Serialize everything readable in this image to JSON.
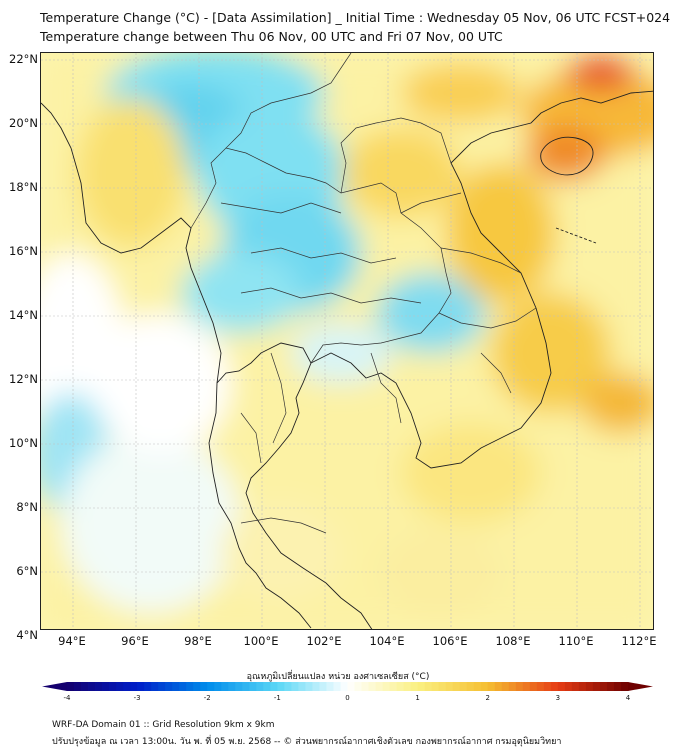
{
  "header": {
    "title_line1": "Temperature Change (°C) - [Data Assimilation] _ Initial Time : Wednesday 05 Nov, 06 UTC FCST+024",
    "title_line2": "Temperature change between Thu 06 Nov, 00 UTC and Fri 07 Nov, 00 UTC"
  },
  "map": {
    "lat_labels": [
      "22°N",
      "20°N",
      "18°N",
      "16°N",
      "14°N",
      "12°N",
      "10°N",
      "8°N",
      "6°N",
      "4°N"
    ],
    "lon_labels": [
      "94°E",
      "96°E",
      "98°E",
      "100°E",
      "102°E",
      "104°E",
      "106°E",
      "108°E",
      "110°E",
      "112°E"
    ],
    "lat_range": [
      4,
      22
    ],
    "lon_range": [
      93,
      112.4
    ],
    "field_description": "temperature change shading",
    "colors": {
      "cool": "#7fe0f2",
      "cool_strong": "#48c8ea",
      "neutral": "#ffffff",
      "warm_light": "#fbf08a",
      "warm": "#f7c840",
      "warm_strong": "#e8552a",
      "coast": "#222222",
      "border": "#333333",
      "grid": "#bfbfbf"
    }
  },
  "colorbar": {
    "title": "อุณหภูมิเปลี่ยนแปลง หน่วย องศาเซลเซียส (°C)",
    "ticks": [
      "-4",
      "-3",
      "-2",
      "-1",
      "0",
      "1",
      "2",
      "3",
      "4"
    ],
    "range": [
      -4,
      4
    ]
  },
  "footer": {
    "line1": "WRF-DA Domain 01 :: Grid Resolution 9km x 9km",
    "line2": "ปรับปรุงข้อมูล ณ เวลา 13:00น. วัน พ. ที่ 05 พ.ย. 2568 -- © ส่วนพยากรณ์อากาศเชิงตัวเลข กองพยากรณ์อากาศ กรมอุตุนิยมวิทยา"
  }
}
